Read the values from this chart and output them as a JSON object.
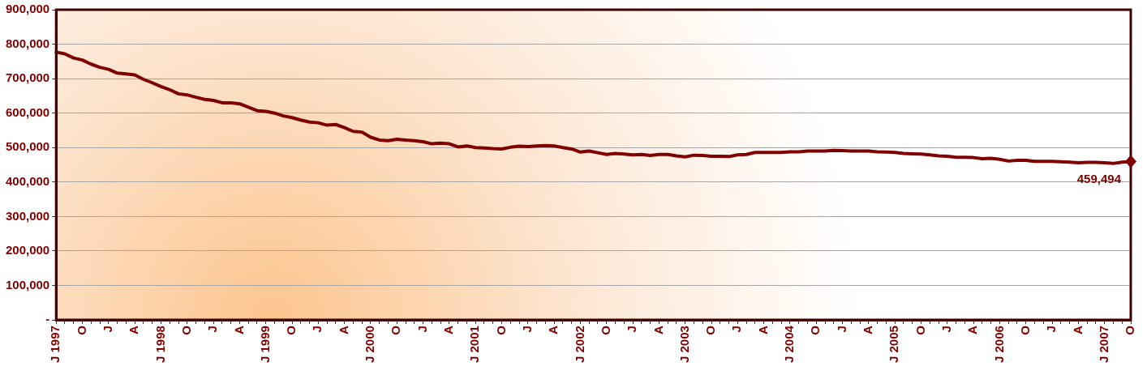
{
  "chart_data": {
    "type": "line",
    "categories": [
      "J 1997",
      null,
      null,
      "O",
      null,
      null,
      "J",
      null,
      null,
      "A",
      null,
      null,
      "J 1998",
      null,
      null,
      "O",
      null,
      null,
      "J",
      null,
      null,
      "A",
      null,
      null,
      "J 1999",
      null,
      null,
      "O",
      null,
      null,
      "J",
      null,
      null,
      "A",
      null,
      null,
      "J 2000",
      null,
      null,
      "O",
      null,
      null,
      "J",
      null,
      null,
      "A",
      null,
      null,
      "J 2001",
      null,
      null,
      "O",
      null,
      null,
      "J",
      null,
      null,
      "A",
      null,
      null,
      "J 2002",
      null,
      null,
      "O",
      null,
      null,
      "J",
      null,
      null,
      "A",
      null,
      null,
      "J 2003",
      null,
      null,
      "O",
      null,
      null,
      "J",
      null,
      null,
      "A",
      null,
      null,
      "J 2004",
      null,
      null,
      "O",
      null,
      null,
      "J",
      null,
      null,
      "A",
      null,
      null,
      "J 2005",
      null,
      null,
      "O",
      null,
      null,
      "J",
      null,
      null,
      "A",
      null,
      null,
      "J 2006",
      null,
      null,
      "O",
      null,
      null,
      "J",
      null,
      null,
      "A",
      null,
      null,
      "J 2007",
      null,
      null,
      "O"
    ],
    "series": [
      {
        "color": "#800000",
        "values": [
          777000,
          772000,
          760000,
          754000,
          742000,
          733000,
          727000,
          716000,
          714000,
          711000,
          698000,
          688000,
          677000,
          668000,
          656000,
          653000,
          646000,
          640000,
          637000,
          630000,
          630000,
          627000,
          617000,
          607000,
          605000,
          600000,
          592000,
          587000,
          580000,
          574000,
          572000,
          565000,
          567000,
          558000,
          547000,
          545000,
          530000,
          522000,
          520000,
          524000,
          522000,
          520000,
          517000,
          511000,
          513000,
          511000,
          502000,
          505000,
          500000,
          499000,
          497000,
          496000,
          501000,
          504000,
          503000,
          505000,
          506000,
          505000,
          500000,
          496000,
          487000,
          490000,
          485000,
          480000,
          483000,
          481000,
          479000,
          480000,
          477000,
          480000,
          480000,
          476000,
          473000,
          478000,
          477000,
          475000,
          475000,
          474000,
          479000,
          480000,
          486000,
          486000,
          486000,
          486000,
          488000,
          488000,
          490000,
          490000,
          490000,
          492000,
          491000,
          490000,
          490000,
          490000,
          488000,
          487000,
          486000,
          483000,
          482000,
          481000,
          479000,
          476000,
          475000,
          472000,
          472000,
          471000,
          468000,
          469000,
          466000,
          461000,
          463000,
          463000,
          460000,
          460000,
          460000,
          459000,
          458000,
          456000,
          457000,
          457000,
          456000,
          454000,
          458000,
          459494
        ],
        "value_labels": [
          null,
          null,
          null,
          null,
          null,
          null,
          null,
          null,
          null,
          null,
          null,
          null,
          null,
          null,
          null,
          null,
          null,
          null,
          null,
          null,
          null,
          null,
          null,
          null,
          null,
          null,
          null,
          null,
          null,
          null,
          null,
          null,
          null,
          null,
          null,
          null,
          null,
          null,
          null,
          null,
          null,
          null,
          null,
          null,
          null,
          null,
          null,
          null,
          null,
          null,
          null,
          null,
          null,
          null,
          null,
          null,
          null,
          null,
          null,
          null,
          null,
          null,
          null,
          null,
          null,
          null,
          null,
          null,
          null,
          null,
          null,
          null,
          null,
          null,
          null,
          null,
          null,
          null,
          null,
          null,
          null,
          null,
          null,
          null,
          null,
          null,
          null,
          null,
          null,
          null,
          null,
          null,
          null,
          null,
          null,
          null,
          null,
          null,
          null,
          null,
          null,
          null,
          null,
          null,
          null,
          null,
          null,
          null,
          null,
          null,
          null,
          null,
          null,
          null,
          null,
          null,
          null,
          null,
          null,
          null,
          null,
          null,
          null,
          "459,494"
        ]
      }
    ],
    "ylim": [
      0,
      900000
    ],
    "yticks": [
      {
        "value": 0,
        "label": "-"
      },
      {
        "value": 100000,
        "label": "100,000"
      },
      {
        "value": 200000,
        "label": "200,000"
      },
      {
        "value": 300000,
        "label": "300,000"
      },
      {
        "value": 400000,
        "label": "400,000"
      },
      {
        "value": 500000,
        "label": "500,000"
      },
      {
        "value": 600000,
        "label": "600,000"
      },
      {
        "value": 700000,
        "label": "700,000"
      },
      {
        "value": 800000,
        "label": "800,000"
      },
      {
        "value": 900000,
        "label": "900,000"
      }
    ],
    "grid": "y",
    "legend": false,
    "marker": "none",
    "line_style": "solid"
  }
}
